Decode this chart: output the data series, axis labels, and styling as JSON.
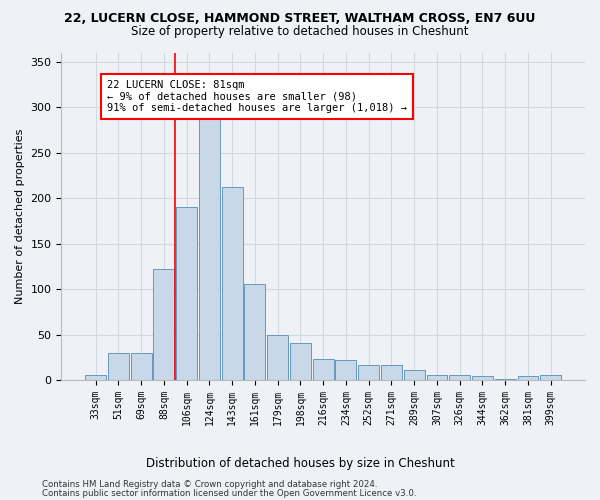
{
  "title_line1": "22, LUCERN CLOSE, HAMMOND STREET, WALTHAM CROSS, EN7 6UU",
  "title_line2": "Size of property relative to detached houses in Cheshunt",
  "xlabel": "Distribution of detached houses by size in Cheshunt",
  "ylabel": "Number of detached properties",
  "footnote1": "Contains HM Land Registry data © Crown copyright and database right 2024.",
  "footnote2": "Contains public sector information licensed under the Open Government Licence v3.0.",
  "bin_labels": [
    "33sqm",
    "51sqm",
    "69sqm",
    "88sqm",
    "106sqm",
    "124sqm",
    "143sqm",
    "161sqm",
    "179sqm",
    "198sqm",
    "216sqm",
    "234sqm",
    "252sqm",
    "271sqm",
    "289sqm",
    "307sqm",
    "326sqm",
    "344sqm",
    "362sqm",
    "381sqm",
    "399sqm"
  ],
  "bar_heights": [
    5,
    30,
    30,
    122,
    190,
    295,
    212,
    106,
    50,
    41,
    23,
    22,
    16,
    16,
    11,
    5,
    5,
    4,
    1,
    4,
    5
  ],
  "bar_color": "#c8d8e8",
  "bar_edge_color": "#6699bb",
  "grid_color": "#d0d8e0",
  "background_color": "#eef2f7",
  "red_line_x": 3.5,
  "annotation_text": "22 LUCERN CLOSE: 81sqm\n← 9% of detached houses are smaller (98)\n91% of semi-detached houses are larger (1,018) →",
  "annotation_box_color": "white",
  "annotation_box_edge_color": "red",
  "ylim": [
    0,
    360
  ],
  "yticks": [
    0,
    50,
    100,
    150,
    200,
    250,
    300,
    350
  ]
}
